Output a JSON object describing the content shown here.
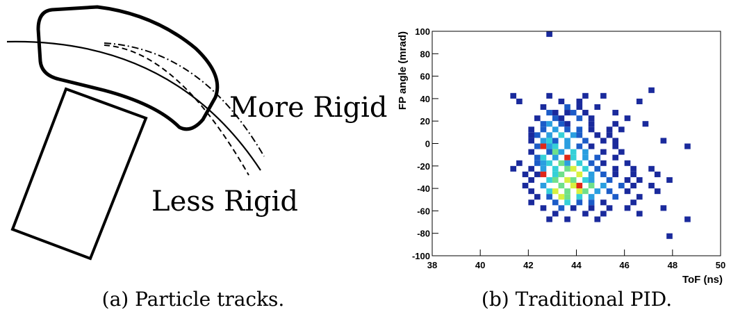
{
  "figure_a": {
    "labels": [
      "More Rigid",
      "Less Rigid"
    ],
    "caption": "(a) Particle tracks."
  },
  "chart_data": {
    "type": "heatmap",
    "caption": "(b) Traditional PID.",
    "x_label": "ToF (ns)",
    "y_label": "FP angle (mrad)",
    "xlim": [
      38,
      50
    ],
    "ylim": [
      -100,
      100
    ],
    "xticks": [
      38,
      40,
      42,
      44,
      46,
      48,
      50
    ],
    "yticks": [
      -100,
      -80,
      -60,
      -40,
      -20,
      0,
      20,
      40,
      60,
      80,
      100
    ],
    "bin_size": [
      0.25,
      5
    ],
    "colorscale": [
      "#1a2a9c",
      "#1c5cc8",
      "#2a9ee0",
      "#35d0d8",
      "#6fe08a",
      "#d8f040",
      "#f59a20",
      "#e02818"
    ],
    "x": [
      42.75,
      47.0,
      41.25,
      42.75,
      44.25,
      45.0,
      41.5,
      43.25,
      44.0,
      46.5,
      42.5,
      43.5,
      44.0,
      44.75,
      42.75,
      43.0,
      43.5,
      43.75,
      44.25,
      45.5,
      42.25,
      43.0,
      43.25,
      44.0,
      44.5,
      46.0,
      42.5,
      42.75,
      43.25,
      43.5,
      44.5,
      45.5,
      46.75,
      42.0,
      42.5,
      43.0,
      43.5,
      44.0,
      44.5,
      45.25,
      45.75,
      42.0,
      42.25,
      42.75,
      43.25,
      43.75,
      44.0,
      44.75,
      45.25,
      42.0,
      42.5,
      42.75,
      43.0,
      43.5,
      44.25,
      45.0,
      45.5,
      47.5,
      42.25,
      42.5,
      42.75,
      43.0,
      43.5,
      44.0,
      44.5,
      45.5,
      48.5,
      42.0,
      42.75,
      43.0,
      43.25,
      43.75,
      44.25,
      45.0,
      45.75,
      42.25,
      42.5,
      43.0,
      43.5,
      43.75,
      44.25,
      44.75,
      45.5,
      41.5,
      42.25,
      42.5,
      42.75,
      43.25,
      43.5,
      44.0,
      44.5,
      45.0,
      46.0,
      41.25,
      42.0,
      42.5,
      43.0,
      43.5,
      43.75,
      44.25,
      44.75,
      45.5,
      46.25,
      47.0,
      41.75,
      42.25,
      42.5,
      43.0,
      43.25,
      44.0,
      44.5,
      45.0,
      45.5,
      46.25,
      47.25,
      42.0,
      42.75,
      43.0,
      43.5,
      43.75,
      44.25,
      44.5,
      45.25,
      46.0,
      46.5,
      47.75,
      41.75,
      42.5,
      43.25,
      43.75,
      44.0,
      44.5,
      45.0,
      45.75,
      46.25,
      47.0,
      42.0,
      42.75,
      43.0,
      43.5,
      44.0,
      44.25,
      44.75,
      45.25,
      46.0,
      47.25,
      42.25,
      42.75,
      43.25,
      43.5,
      44.0,
      44.5,
      45.5,
      46.5,
      42.0,
      43.0,
      43.5,
      44.0,
      44.5,
      45.0,
      46.25,
      42.5,
      43.25,
      43.75,
      44.5,
      45.25,
      46.0,
      47.5,
      43.0,
      44.25,
      45.0,
      46.5,
      42.75,
      43.5,
      44.75,
      48.5,
      47.75
    ],
    "y": [
      95,
      45,
      40,
      40,
      40,
      40,
      35,
      35,
      35,
      35,
      30,
      30,
      30,
      30,
      25,
      25,
      25,
      25,
      25,
      25,
      20,
      20,
      20,
      20,
      20,
      20,
      15,
      15,
      15,
      15,
      15,
      15,
      15,
      10,
      10,
      10,
      10,
      10,
      10,
      10,
      10,
      5,
      5,
      5,
      5,
      5,
      5,
      5,
      5,
      0,
      0,
      0,
      0,
      0,
      0,
      0,
      0,
      0,
      -5,
      -5,
      -5,
      -5,
      -5,
      -5,
      -5,
      -5,
      -5,
      -10,
      -10,
      -10,
      -10,
      -10,
      -10,
      -10,
      -10,
      -15,
      -15,
      -15,
      -15,
      -15,
      -15,
      -15,
      -15,
      -20,
      -20,
      -20,
      -20,
      -20,
      -20,
      -20,
      -20,
      -20,
      -20,
      -25,
      -25,
      -25,
      -25,
      -25,
      -25,
      -25,
      -25,
      -25,
      -25,
      -25,
      -30,
      -30,
      -30,
      -30,
      -30,
      -30,
      -30,
      -30,
      -30,
      -30,
      -30,
      -35,
      -35,
      -35,
      -35,
      -35,
      -35,
      -35,
      -35,
      -35,
      -35,
      -35,
      -40,
      -40,
      -40,
      -40,
      -40,
      -40,
      -40,
      -40,
      -40,
      -40,
      -45,
      -45,
      -45,
      -45,
      -45,
      -45,
      -45,
      -45,
      -45,
      -45,
      -50,
      -50,
      -50,
      -50,
      -50,
      -50,
      -50,
      -50,
      -55,
      -55,
      -55,
      -55,
      -55,
      -55,
      -55,
      -60,
      -60,
      -60,
      -60,
      -60,
      -60,
      -60,
      -65,
      -65,
      -65,
      -65,
      -70,
      -70,
      -70,
      -70,
      -85
    ],
    "counts": [
      1,
      1,
      1,
      1,
      1,
      1,
      1,
      1,
      1,
      1,
      1,
      2,
      1,
      1,
      2,
      1,
      1,
      2,
      1,
      1,
      1,
      2,
      1,
      2,
      1,
      1,
      2,
      3,
      2,
      1,
      1,
      1,
      1,
      1,
      2,
      3,
      2,
      2,
      1,
      1,
      1,
      1,
      2,
      3,
      4,
      3,
      2,
      1,
      1,
      1,
      3,
      4,
      2,
      3,
      2,
      1,
      1,
      1,
      2,
      8,
      3,
      4,
      3,
      2,
      1,
      1,
      1,
      1,
      2,
      5,
      3,
      4,
      3,
      1,
      1,
      2,
      4,
      3,
      8,
      4,
      3,
      2,
      1,
      1,
      2,
      3,
      4,
      5,
      3,
      4,
      2,
      1,
      1,
      1,
      1,
      3,
      4,
      5,
      6,
      4,
      2,
      1,
      1,
      1,
      1,
      1,
      8,
      4,
      5,
      6,
      3,
      2,
      1,
      1,
      1,
      1,
      4,
      5,
      6,
      5,
      4,
      3,
      2,
      1,
      1,
      1,
      1,
      3,
      5,
      6,
      8,
      5,
      3,
      2,
      1,
      1,
      1,
      4,
      6,
      5,
      6,
      5,
      3,
      2,
      1,
      1,
      1,
      2,
      6,
      5,
      4,
      3,
      2,
      1,
      1,
      2,
      4,
      2,
      2,
      1,
      1,
      1,
      2,
      1,
      1,
      1,
      1,
      1,
      1,
      1,
      1,
      1,
      1,
      1,
      1,
      1,
      1
    ]
  }
}
